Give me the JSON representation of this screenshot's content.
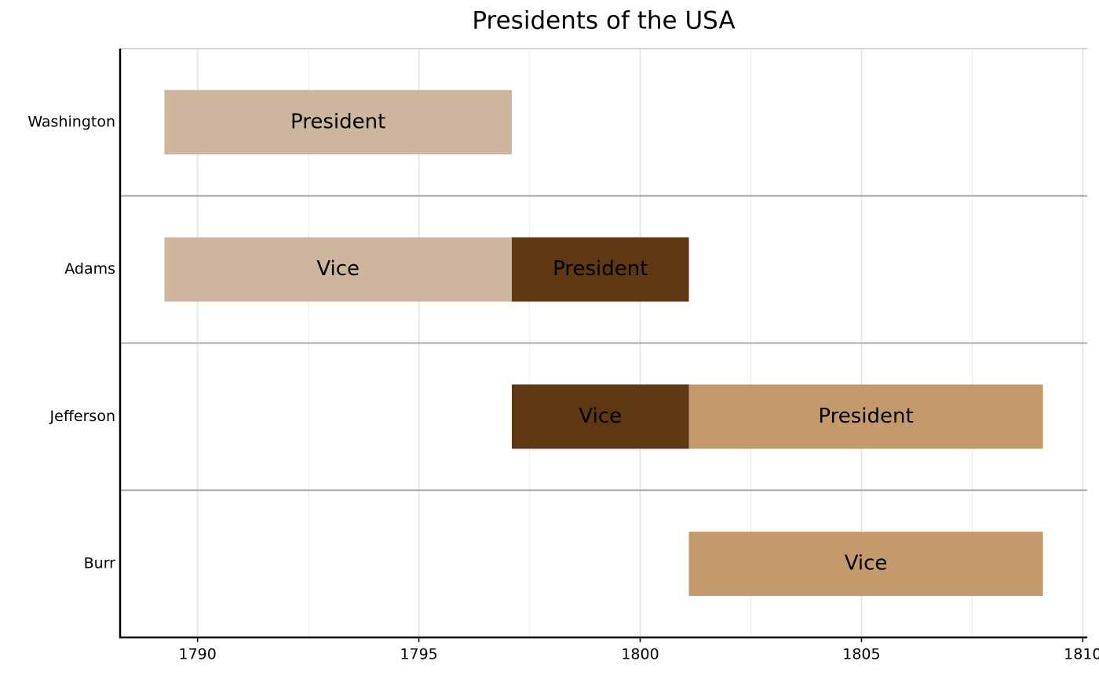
{
  "chart_data": {
    "type": "timeline",
    "title": "Presidents of the USA",
    "rows": [
      {
        "name": "Washington",
        "segments": [
          {
            "label": "President",
            "start": 1789.25,
            "end": 1797.1,
            "color": "#cdb59e"
          }
        ]
      },
      {
        "name": "Adams",
        "segments": [
          {
            "label": "Vice",
            "start": 1789.25,
            "end": 1797.1,
            "color": "#cdb59e"
          },
          {
            "label": "President",
            "start": 1797.1,
            "end": 1801.1,
            "color": "#5e3813"
          }
        ]
      },
      {
        "name": "Jefferson",
        "segments": [
          {
            "label": "Vice",
            "start": 1797.1,
            "end": 1801.1,
            "color": "#5e3813"
          },
          {
            "label": "President",
            "start": 1801.1,
            "end": 1809.1,
            "color": "#c4996c"
          }
        ]
      },
      {
        "name": "Burr",
        "segments": [
          {
            "label": "Vice",
            "start": 1801.1,
            "end": 1809.1,
            "color": "#c4996c"
          }
        ]
      }
    ],
    "xlim": [
      1788.25,
      1810.1
    ],
    "xticks": [
      1790,
      1795,
      1800,
      1805,
      1810
    ],
    "minor_xticks": [
      1792.5,
      1797.5,
      1802.5,
      1807.5
    ],
    "grid": true
  }
}
